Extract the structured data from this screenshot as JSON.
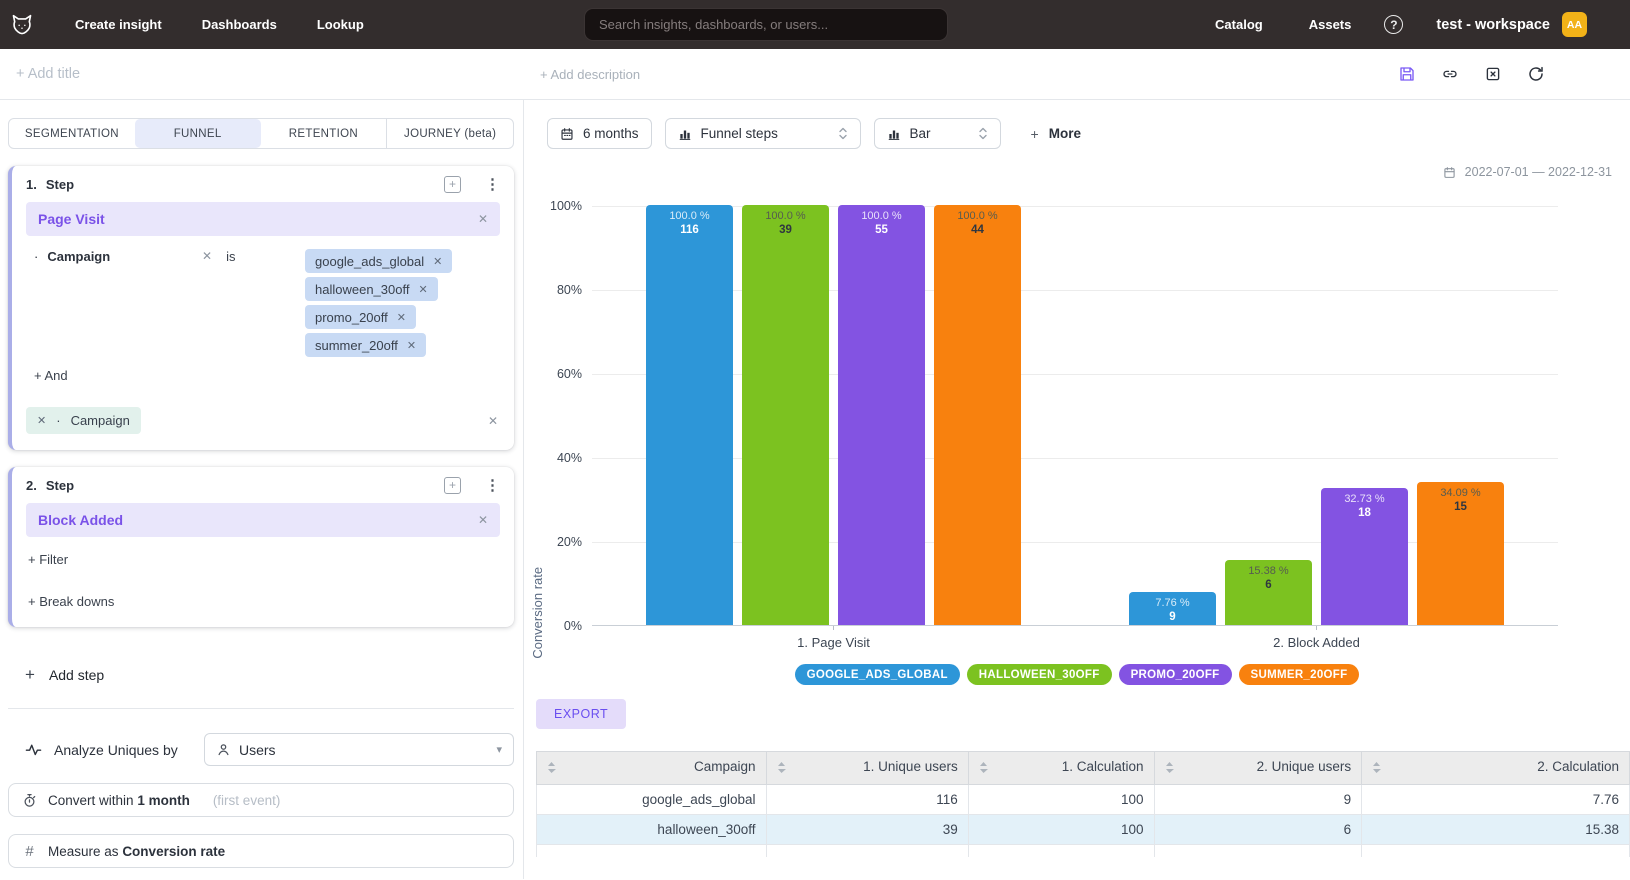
{
  "icons": {
    "close": "✕",
    "kebab": "⋮",
    "plus": "+",
    "caret_down": "▾",
    "bullet": "·",
    "hash": "#",
    "help": "?"
  },
  "colors": {
    "accent_purple": "#7a52e8",
    "step_accent": "#aaaee8",
    "avatar_bg": "#f2b218",
    "alt_row": "#e3f1f9",
    "export_bg": "#e4dcfa"
  },
  "navbar": {
    "links_left": {
      "create_insight": "Create insight",
      "dashboards": "Dashboards",
      "lookup": "Lookup"
    },
    "search_placeholder": "Search insights, dashboards, or users...",
    "links_right": {
      "catalog": "Catalog",
      "assets": "Assets"
    },
    "workspace": "test - workspace",
    "avatar_initials": "AA"
  },
  "titlebar": {
    "add_title": "+ Add title",
    "add_description": "+ Add description"
  },
  "builder": {
    "tabs": [
      {
        "label": "SEGMENTATION",
        "active": false
      },
      {
        "label": "FUNNEL",
        "active": true
      },
      {
        "label": "RETENTION",
        "active": false
      },
      {
        "label": "JOURNEY (beta)",
        "active": false
      }
    ],
    "steps": [
      {
        "index": "1.",
        "title": "Step",
        "event": "Page Visit",
        "filter": {
          "property": "Campaign",
          "operator": "is",
          "values": [
            "google_ads_global",
            "halloween_30off",
            "promo_20off",
            "summer_20off"
          ]
        },
        "add_condition_label": "+ And",
        "breakdown_property": "Campaign"
      },
      {
        "index": "2.",
        "title": "Step",
        "event": "Block Added",
        "add_filter_label": "+ Filter",
        "add_breakdown_label": "+ Break downs"
      }
    ],
    "add_step_label": "Add step",
    "analyze": {
      "label": "Analyze Uniques by",
      "value": "Users"
    },
    "convert": {
      "prefix": "Convert within",
      "value": "1 month",
      "suffix": "(first event)"
    },
    "measure": {
      "prefix": "Measure as",
      "value": "Conversion rate"
    }
  },
  "toolbar": {
    "range": "6 months",
    "view": "Funnel steps",
    "chart_type": "Bar",
    "more_plus": "+",
    "more": "More",
    "date_range": "2022-07-01 — 2022-12-31"
  },
  "chart_data": {
    "type": "bar",
    "ylabel": "Conversion rate",
    "ylim": [
      0,
      100
    ],
    "yticks": [
      "0%",
      "20%",
      "40%",
      "60%",
      "80%",
      "100%"
    ],
    "grid": true,
    "legend_position": "bottom",
    "categories": [
      "1. Page Visit",
      "2. Block Added"
    ],
    "series": [
      {
        "name": "google_ads_global",
        "legend_label": "GOOGLE_ADS_GLOBAL",
        "color": "#2d96d8",
        "pct": [
          100.0,
          7.76
        ],
        "pct_labels": [
          "100.0 %",
          "7.76 %"
        ],
        "counts": [
          116,
          9
        ]
      },
      {
        "name": "halloween_30off",
        "legend_label": "HALLOWEEN_30OFF",
        "color": "#7cc220",
        "pct": [
          100.0,
          15.38
        ],
        "pct_labels": [
          "100.0 %",
          "15.38 %"
        ],
        "counts": [
          39,
          6
        ]
      },
      {
        "name": "promo_20off",
        "legend_label": "PROMO_20OFF",
        "color": "#8353e2",
        "pct": [
          100.0,
          32.73
        ],
        "pct_labels": [
          "100.0 %",
          "32.73 %"
        ],
        "counts": [
          55,
          18
        ]
      },
      {
        "name": "summer_20off",
        "legend_label": "SUMMER_20OFF",
        "color": "#f8810e",
        "pct": [
          100.0,
          34.09
        ],
        "pct_labels": [
          "100.0 %",
          "34.09 %"
        ],
        "counts": [
          44,
          15
        ]
      }
    ]
  },
  "export_label": "EXPORT",
  "table": {
    "headers": [
      "Campaign",
      "1. Unique users",
      "1. Calculation",
      "2. Unique users",
      "2. Calculation"
    ],
    "rows": [
      [
        "google_ads_global",
        "116",
        "100",
        "9",
        "7.76"
      ],
      [
        "halloween_30off",
        "39",
        "100",
        "6",
        "15.38"
      ]
    ]
  }
}
